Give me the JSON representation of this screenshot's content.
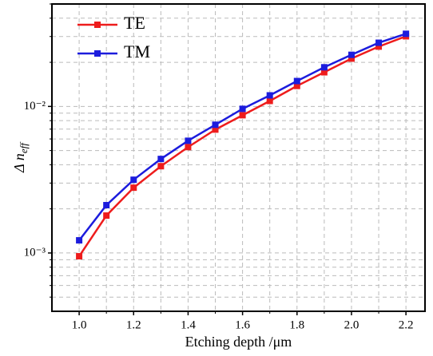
{
  "chart_data": {
    "type": "line",
    "xlabel": "Etching depth /μm",
    "ylabel": {
      "main": "Δ n",
      "sub": "eff"
    },
    "x": [
      1.0,
      1.1,
      1.2,
      1.3,
      1.4,
      1.5,
      1.6,
      1.7,
      1.8,
      1.9,
      2.0,
      2.1,
      2.2
    ],
    "series": [
      {
        "name": "TE",
        "color": "#ee1c1c",
        "values": [
          0.00095,
          0.0018,
          0.00279,
          0.00391,
          0.00528,
          0.00695,
          0.00871,
          0.0109,
          0.0138,
          0.0171,
          0.0212,
          0.0256,
          0.0301
        ]
      },
      {
        "name": "TM",
        "color": "#1c1cdd",
        "values": [
          0.00122,
          0.00212,
          0.00316,
          0.00438,
          0.00583,
          0.0075,
          0.00963,
          0.0119,
          0.0149,
          0.0185,
          0.0225,
          0.0272,
          0.0313
        ]
      }
    ],
    "xlim": [
      0.9,
      2.27
    ],
    "xticks": [
      {
        "value": 1.0,
        "label": "1.0"
      },
      1.2,
      1.4,
      1.6,
      1.8,
      {
        "value": 2.0,
        "label": "2.0"
      },
      2.2
    ],
    "xminorticks": [
      1.1,
      1.3,
      1.5,
      1.7,
      1.9,
      2.1
    ],
    "ylim": [
      0.0004,
      0.05
    ],
    "ylog": true,
    "yticks": [
      {
        "value": 0.001,
        "label": "10⁻³"
      },
      {
        "value": 0.01,
        "label": "10⁻²"
      }
    ],
    "yminorticks": [
      0.0005,
      0.0006,
      0.0007,
      0.0008,
      0.0009,
      0.002,
      0.003,
      0.004,
      0.005,
      0.006,
      0.007,
      0.008,
      0.009,
      0.02,
      0.03,
      0.04,
      0.05
    ],
    "grid": true,
    "legend": "top-left"
  }
}
